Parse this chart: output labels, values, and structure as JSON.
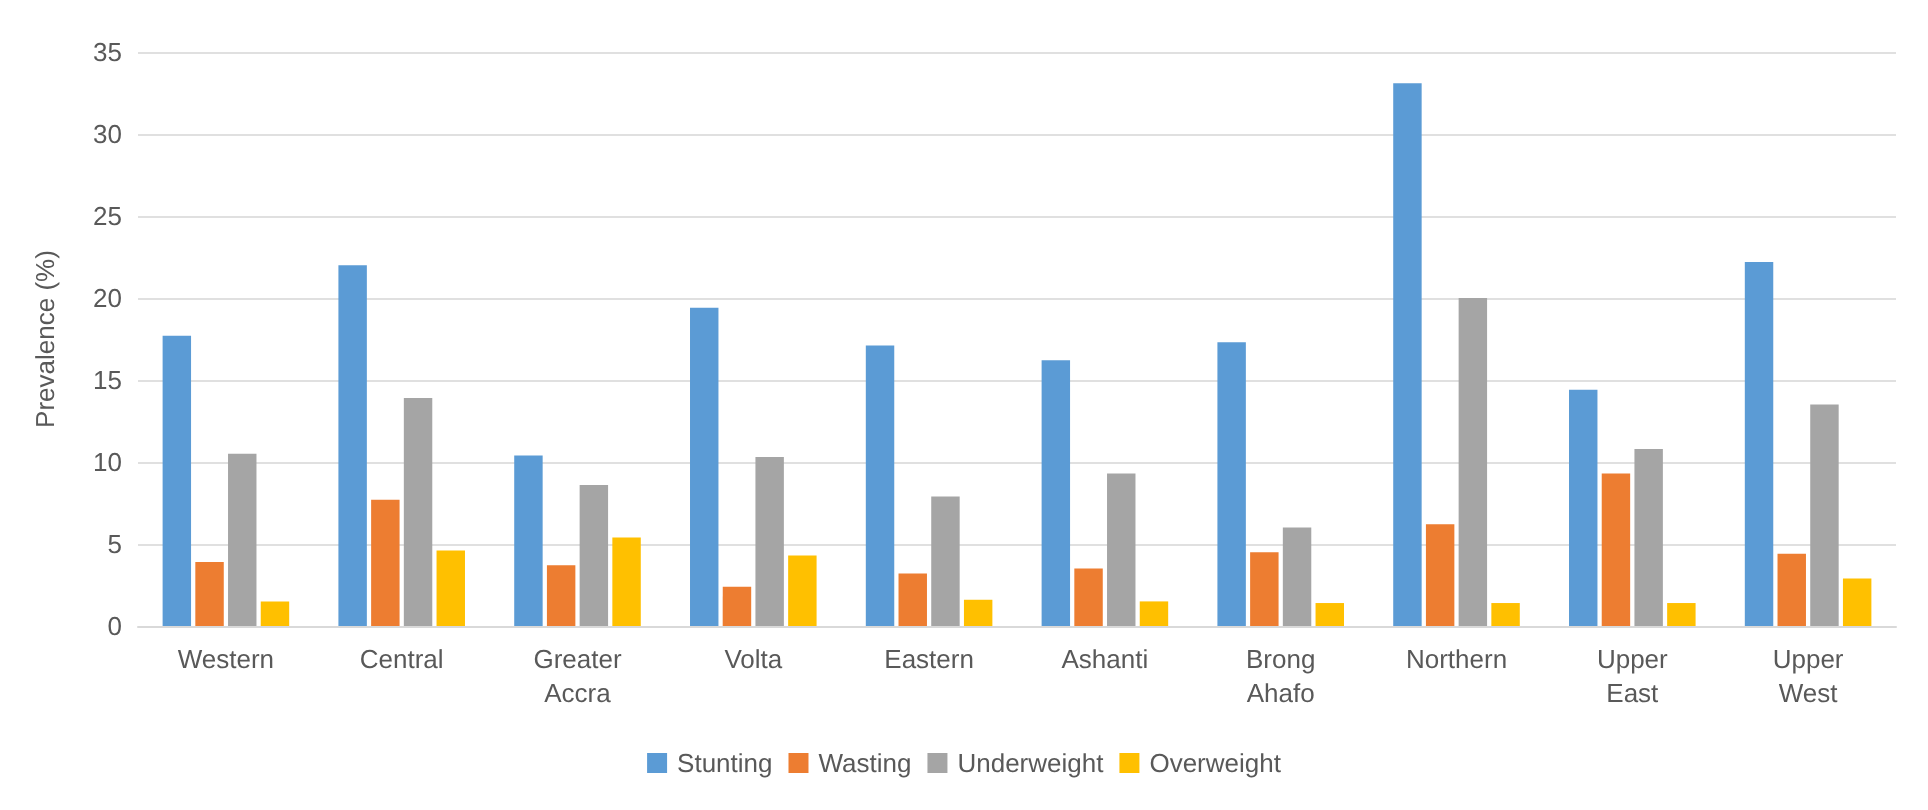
{
  "chart_data": {
    "type": "bar",
    "ylabel": "Prevalence (%)",
    "categories": [
      "Western",
      "Central",
      "Greater\nAccra",
      "Volta",
      "Eastern",
      "Ashanti",
      "Brong\nAhafo",
      "Northern",
      "Upper\nEast",
      "Upper\nWest"
    ],
    "series": [
      {
        "name": "Stunting",
        "color": "#5b9bd5",
        "values": [
          17.7,
          22.0,
          10.4,
          19.4,
          17.1,
          16.2,
          17.3,
          33.1,
          14.4,
          22.2
        ]
      },
      {
        "name": "Wasting",
        "color": "#ed7d31",
        "values": [
          3.9,
          7.7,
          3.7,
          2.4,
          3.2,
          3.5,
          4.5,
          6.2,
          9.3,
          4.4
        ]
      },
      {
        "name": "Underweight",
        "color": "#a5a5a5",
        "values": [
          10.5,
          13.9,
          8.6,
          10.3,
          7.9,
          9.3,
          6.0,
          20.0,
          10.8,
          13.5
        ]
      },
      {
        "name": "Overweight",
        "color": "#ffc000",
        "values": [
          1.5,
          4.6,
          5.4,
          4.3,
          1.6,
          1.5,
          1.4,
          1.4,
          1.4,
          2.9
        ]
      }
    ],
    "ylim": [
      0,
      35
    ],
    "yticks": [
      0,
      5,
      10,
      15,
      20,
      25,
      30,
      35
    ],
    "grid": "y",
    "legend": "bottom"
  }
}
